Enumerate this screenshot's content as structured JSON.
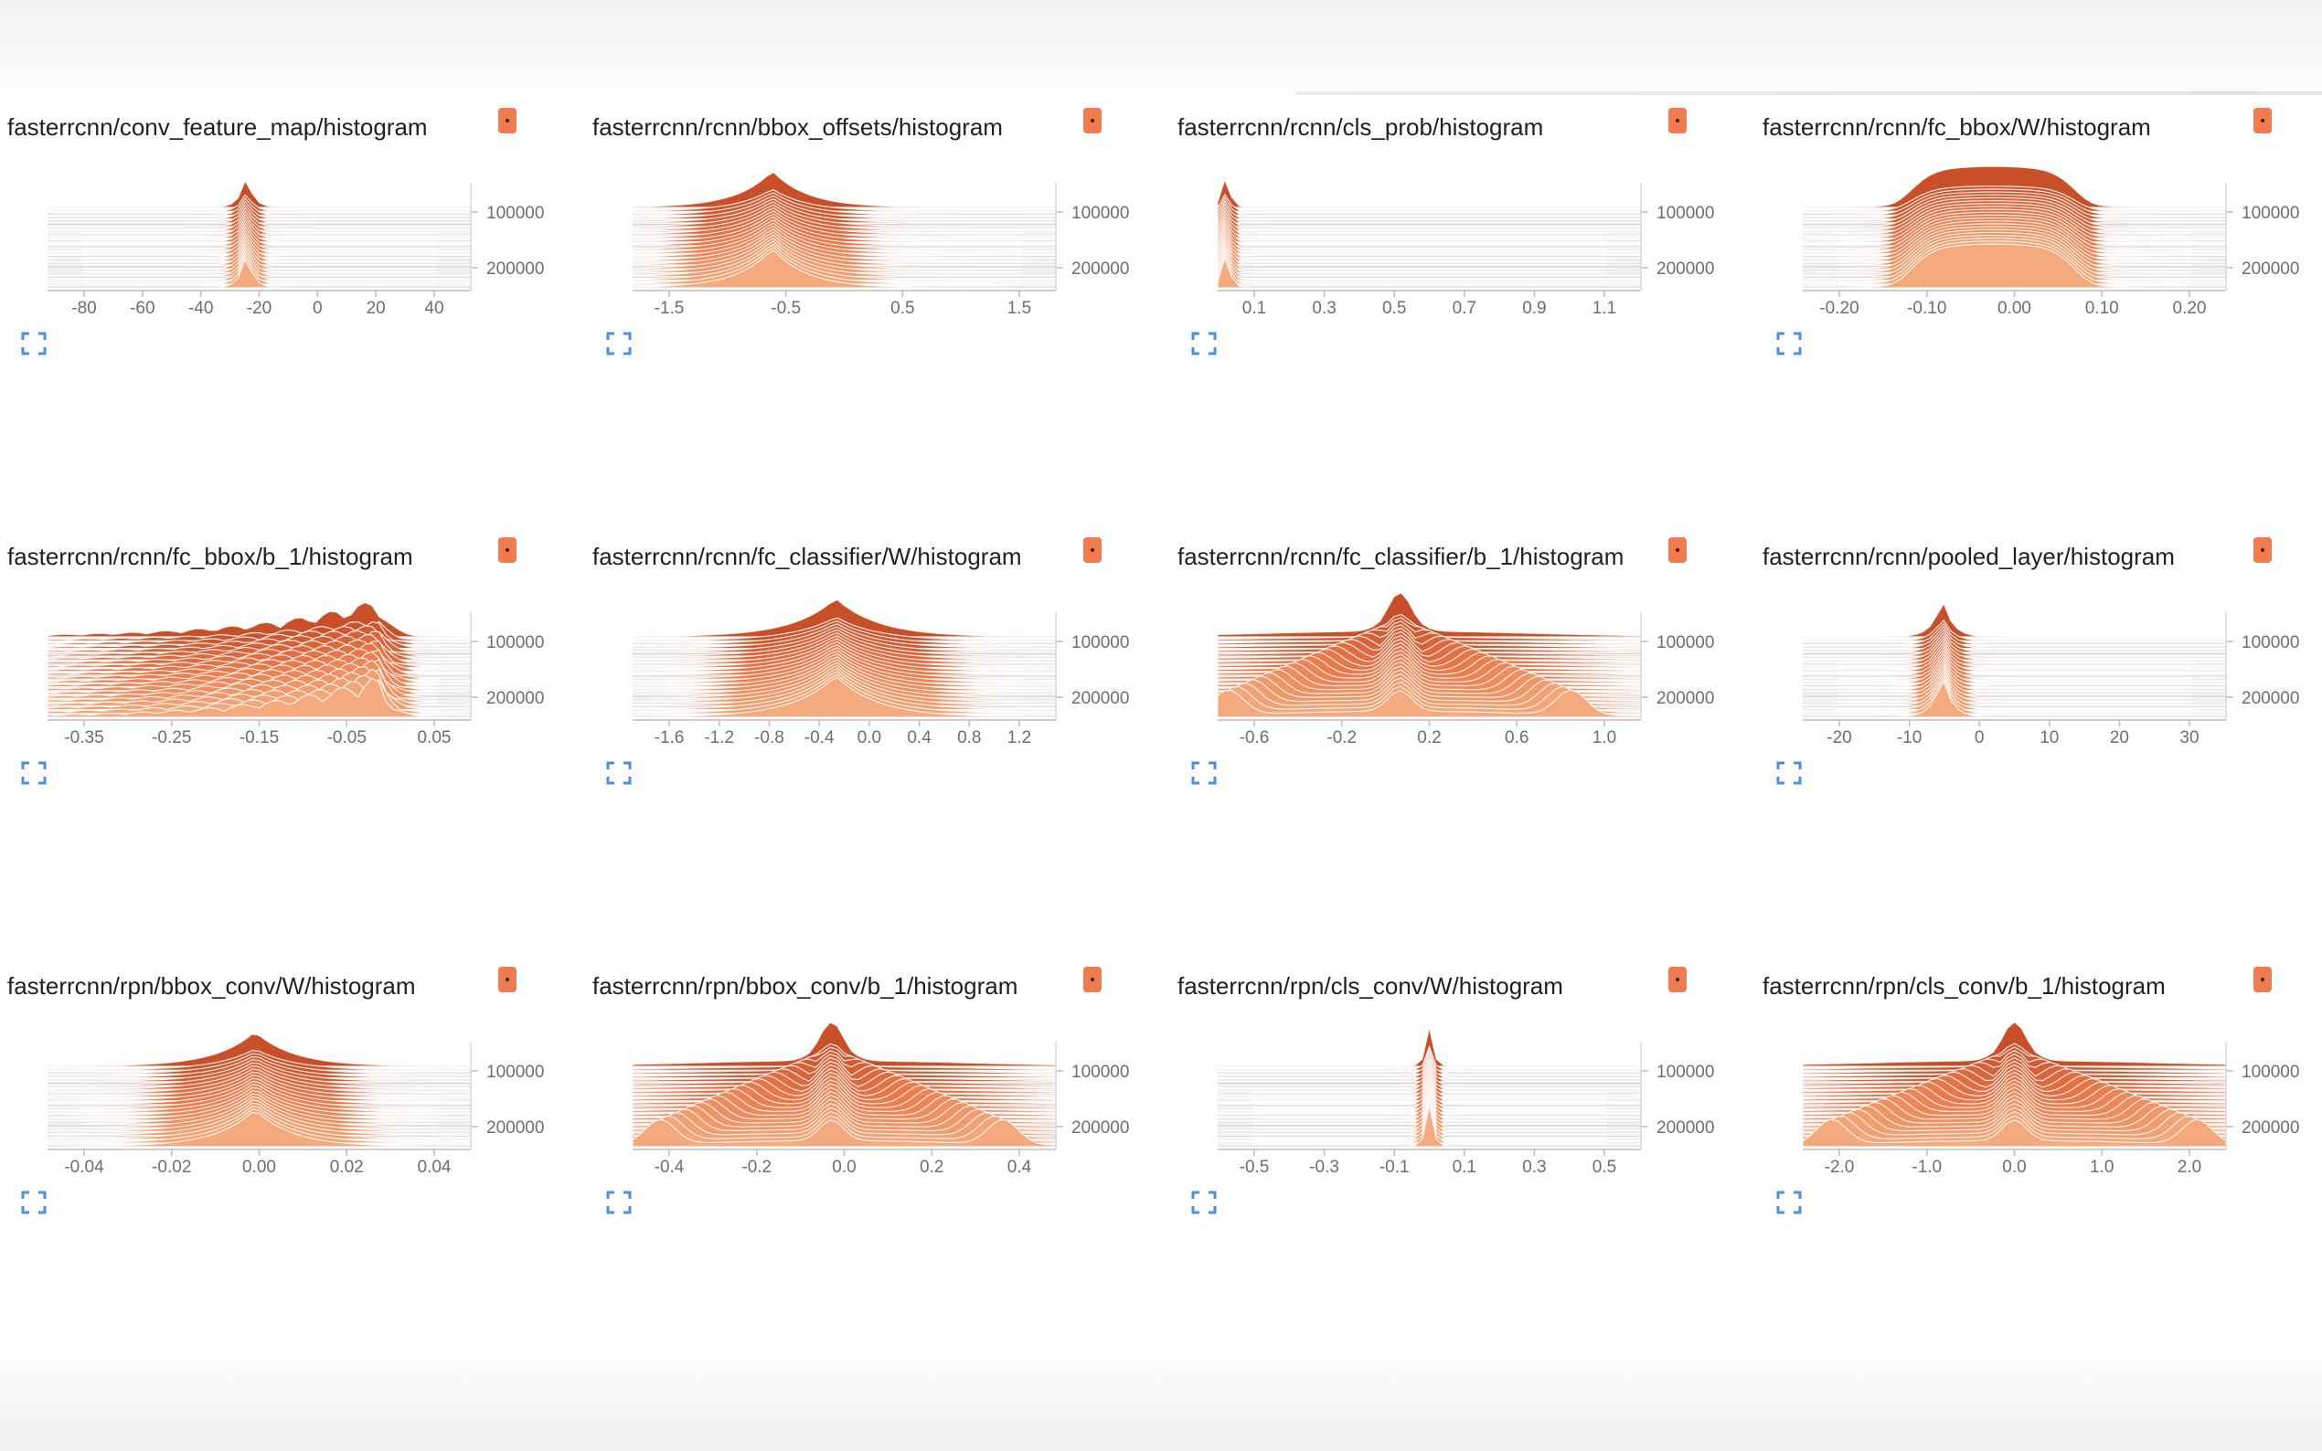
{
  "colors": {
    "ridge_light": "#f4aa7c",
    "ridge_mid": "#ec7b4c",
    "ridge_dark": "#c84f28",
    "badge": "#f07b50",
    "expand_icon": "#4a90e2"
  },
  "cards": [
    {
      "title": "fasterrcnn/conv_feature_map/histogram",
      "x_ticks": [
        "-80",
        "-60",
        "-40",
        "-20",
        "0",
        "20",
        "40"
      ],
      "y_ticks": [
        "100000",
        "200000"
      ],
      "badge_icon": "dot-menu-icon",
      "expand_icon": "fullscreen-icon"
    },
    {
      "title": "fasterrcnn/rcnn/bbox_offsets/histogram",
      "x_ticks": [
        "-1.5",
        "-0.5",
        "0.5",
        "1.5"
      ],
      "y_ticks": [
        "100000",
        "200000"
      ],
      "badge_icon": "dot-menu-icon",
      "expand_icon": "fullscreen-icon"
    },
    {
      "title": "fasterrcnn/rcnn/cls_prob/histogram",
      "x_ticks": [
        "0.1",
        "0.3",
        "0.5",
        "0.7",
        "0.9",
        "1.1"
      ],
      "y_ticks": [
        "100000",
        "200000"
      ],
      "badge_icon": "dot-menu-icon",
      "expand_icon": "fullscreen-icon"
    },
    {
      "title": "fasterrcnn/rcnn/fc_bbox/W/histogram",
      "x_ticks": [
        "-0.20",
        "-0.10",
        "0.00",
        "0.10",
        "0.20"
      ],
      "y_ticks": [
        "100000",
        "200000"
      ],
      "badge_icon": "dot-menu-icon",
      "expand_icon": "fullscreen-icon"
    },
    {
      "title": "fasterrcnn/rcnn/fc_bbox/b_1/histogram",
      "x_ticks": [
        "-0.35",
        "-0.25",
        "-0.15",
        "-0.05",
        "0.05"
      ],
      "y_ticks": [
        "100000",
        "200000"
      ],
      "badge_icon": "dot-menu-icon",
      "expand_icon": "fullscreen-icon"
    },
    {
      "title": "fasterrcnn/rcnn/fc_classifier/W/histogram",
      "x_ticks": [
        "-1.6",
        "-1.2",
        "-0.8",
        "-0.4",
        "0.0",
        "0.4",
        "0.8",
        "1.2"
      ],
      "y_ticks": [
        "100000",
        "200000"
      ],
      "badge_icon": "dot-menu-icon",
      "expand_icon": "fullscreen-icon"
    },
    {
      "title": "fasterrcnn/rcnn/fc_classifier/b_1/histogram",
      "x_ticks": [
        "-0.6",
        "-0.2",
        "0.2",
        "0.6",
        "1.0"
      ],
      "y_ticks": [
        "100000",
        "200000"
      ],
      "badge_icon": "dot-menu-icon",
      "expand_icon": "fullscreen-icon"
    },
    {
      "title": "fasterrcnn/rcnn/pooled_layer/histogram",
      "x_ticks": [
        "-20",
        "-10",
        "0",
        "10",
        "20",
        "30"
      ],
      "y_ticks": [
        "100000",
        "200000"
      ],
      "badge_icon": "dot-menu-icon",
      "expand_icon": "fullscreen-icon"
    },
    {
      "title": "fasterrcnn/rpn/bbox_conv/W/histogram",
      "x_ticks": [
        "-0.04",
        "-0.02",
        "0.00",
        "0.02",
        "0.04"
      ],
      "y_ticks": [
        "100000",
        "200000"
      ],
      "badge_icon": "dot-menu-icon",
      "expand_icon": "fullscreen-icon"
    },
    {
      "title": "fasterrcnn/rpn/bbox_conv/b_1/histogram",
      "x_ticks": [
        "-0.4",
        "-0.2",
        "0.0",
        "0.2",
        "0.4"
      ],
      "y_ticks": [
        "100000",
        "200000"
      ],
      "badge_icon": "dot-menu-icon",
      "expand_icon": "fullscreen-icon"
    },
    {
      "title": "fasterrcnn/rpn/cls_conv/W/histogram",
      "x_ticks": [
        "-0.5",
        "-0.3",
        "-0.1",
        "0.1",
        "0.3",
        "0.5"
      ],
      "y_ticks": [
        "100000",
        "200000"
      ],
      "badge_icon": "dot-menu-icon",
      "expand_icon": "fullscreen-icon"
    },
    {
      "title": "fasterrcnn/rpn/cls_conv/b_1/histogram",
      "x_ticks": [
        "-2.0",
        "-1.0",
        "0.0",
        "1.0",
        "2.0"
      ],
      "y_ticks": [
        "100000",
        "200000"
      ],
      "badge_icon": "dot-menu-icon",
      "expand_icon": "fullscreen-icon"
    }
  ]
}
